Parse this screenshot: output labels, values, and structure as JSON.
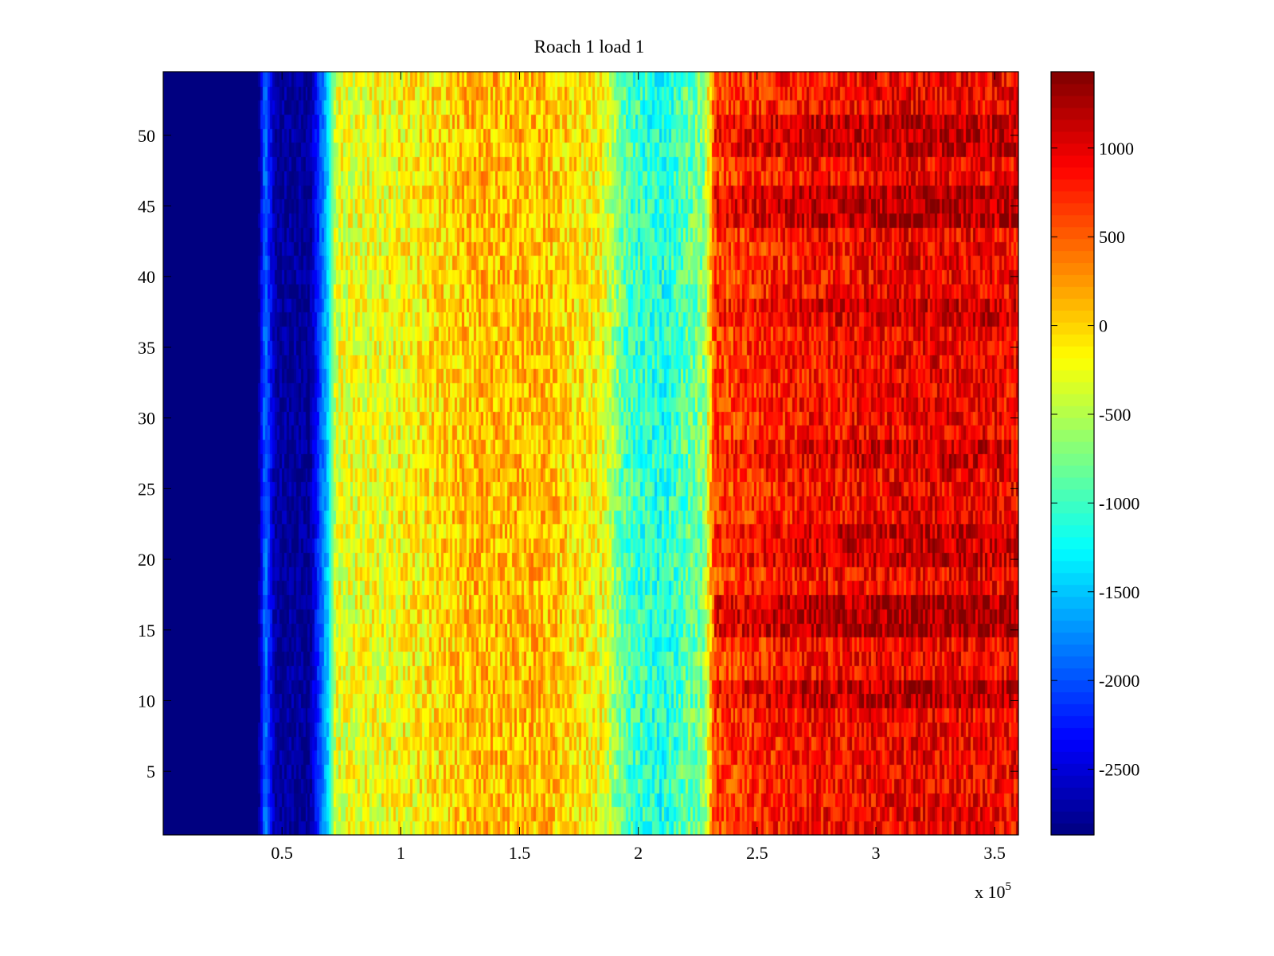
{
  "chart_data": {
    "type": "heatmap",
    "title": "Roach 1 load 1",
    "xlabel": "",
    "ylabel": "",
    "x_multiplier_label": {
      "base": "x 10",
      "exponent": "5"
    },
    "xlim": [
      0,
      360000
    ],
    "ylim": [
      0.5,
      54.5
    ],
    "x_ticks": [
      {
        "value": 0.5,
        "label": "0.5"
      },
      {
        "value": 1,
        "label": "1"
      },
      {
        "value": 1.5,
        "label": "1.5"
      },
      {
        "value": 2,
        "label": "2"
      },
      {
        "value": 2.5,
        "label": "2.5"
      },
      {
        "value": 3,
        "label": "3"
      },
      {
        "value": 3.5,
        "label": "3.5"
      }
    ],
    "y_ticks": [
      {
        "value": 5,
        "label": "5"
      },
      {
        "value": 10,
        "label": "10"
      },
      {
        "value": 15,
        "label": "15"
      },
      {
        "value": 20,
        "label": "20"
      },
      {
        "value": 25,
        "label": "25"
      },
      {
        "value": 30,
        "label": "30"
      },
      {
        "value": 35,
        "label": "35"
      },
      {
        "value": 40,
        "label": "40"
      },
      {
        "value": 45,
        "label": "45"
      },
      {
        "value": 50,
        "label": "50"
      }
    ],
    "rows": 54,
    "colormap": "jet",
    "clim": [
      -2870,
      1430
    ],
    "colorbar_ticks": [
      {
        "value": 1000,
        "label": "1000"
      },
      {
        "value": 500,
        "label": "500"
      },
      {
        "value": 0,
        "label": "0"
      },
      {
        "value": -500,
        "label": "-500"
      },
      {
        "value": -1000,
        "label": "-1000"
      },
      {
        "value": -1500,
        "label": "-1500"
      },
      {
        "value": -2000,
        "label": "-2000"
      },
      {
        "value": -2500,
        "label": "-2500"
      }
    ],
    "value_profile_along_x": [
      {
        "x": 0,
        "value": -2870
      },
      {
        "x": 40000,
        "value": -2870
      },
      {
        "x": 43000,
        "value": -1700
      },
      {
        "x": 47000,
        "value": -2650
      },
      {
        "x": 62000,
        "value": -2700
      },
      {
        "x": 70000,
        "value": -1300
      },
      {
        "x": 73000,
        "value": -300
      },
      {
        "x": 100000,
        "value": -200
      },
      {
        "x": 130000,
        "value": 100
      },
      {
        "x": 160000,
        "value": 100
      },
      {
        "x": 185000,
        "value": -200
      },
      {
        "x": 195000,
        "value": -950
      },
      {
        "x": 210000,
        "value": -1150
      },
      {
        "x": 228000,
        "value": -700
      },
      {
        "x": 232000,
        "value": 600
      },
      {
        "x": 270000,
        "value": 850
      },
      {
        "x": 320000,
        "value": 950
      },
      {
        "x": 360000,
        "value": 900
      }
    ],
    "row_offsets_high_region": [
      {
        "row_range": [
          15,
          17
        ],
        "offset": 350
      },
      {
        "row_range": [
          10,
          11
        ],
        "offset": 250
      },
      {
        "row_range": [
          20,
          22
        ],
        "offset": 200
      },
      {
        "row_range": [
          27,
          28
        ],
        "offset": 150
      },
      {
        "row_range": [
          44,
          46
        ],
        "offset": 300
      },
      {
        "row_range": [
          49,
          51
        ],
        "offset": 250
      },
      {
        "row_range": [
          37,
          38
        ],
        "offset": 150
      }
    ]
  }
}
